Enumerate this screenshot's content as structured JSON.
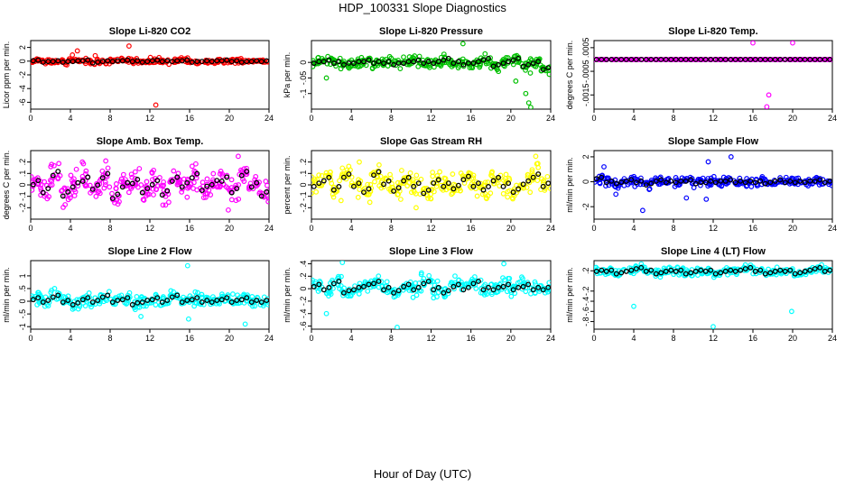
{
  "page": {
    "title": "HDP_100331  Slope Diagnostics",
    "x_caption": "Hour of Day (UTC)"
  },
  "chart_data": [
    {
      "type": "scatter",
      "title": "Slope Li-820 CO2",
      "ylabel": "Licor ppm per min.",
      "color": "#ff0000",
      "xlim": [
        0,
        24
      ],
      "xticks": [
        0,
        4,
        8,
        12,
        16,
        20,
        24
      ],
      "ylim": [
        -7,
        3
      ],
      "yticks": [
        2,
        0,
        -2,
        -4,
        -6
      ],
      "spread": 0.3,
      "hourly_means": [
        0.1,
        -0.1,
        0.0,
        -0.1,
        0.0,
        0.1,
        -0.2,
        0.0,
        0.0,
        0.1,
        0.0,
        -0.1,
        0.1,
        0.0,
        0.0,
        0.1,
        -0.1,
        0.0,
        0.0,
        0.1,
        0.0,
        -0.1,
        0.0,
        0.0
      ],
      "outliers": [
        [
          4.7,
          1.5
        ],
        [
          9.9,
          2.2
        ],
        [
          12.6,
          -6.4
        ],
        [
          4.2,
          0.9
        ],
        [
          6.5,
          0.8
        ]
      ]
    },
    {
      "type": "scatter",
      "title": "Slope Li-820 Pressure",
      "ylabel": "kPa per min.",
      "color": "#00c000",
      "xlim": [
        0,
        24
      ],
      "xticks": [
        0,
        4,
        8,
        12,
        16,
        20,
        24
      ],
      "ylim": [
        -0.15,
        0.07
      ],
      "yticks": [
        0.0,
        -0.05,
        -0.1
      ],
      "spread": 0.015,
      "hourly_means": [
        0.0,
        0.005,
        0.0,
        -0.005,
        0.0,
        0.005,
        0.0,
        0.0,
        -0.005,
        0.0,
        0.005,
        0.0,
        0.0,
        0.01,
        0.0,
        -0.005,
        0.0,
        0.01,
        -0.01,
        0.0,
        0.01,
        -0.01,
        0.0,
        -0.02
      ],
      "outliers": [
        [
          15.2,
          0.06
        ],
        [
          21.5,
          -0.1
        ],
        [
          21.8,
          -0.13
        ],
        [
          22.0,
          -0.15
        ],
        [
          20.5,
          -0.06
        ],
        [
          1.5,
          -0.05
        ]
      ]
    },
    {
      "type": "scatter",
      "title": "Slope Li-820 Temp.",
      "ylabel": "degrees C per min.",
      "color": "#ff00ff",
      "xlim": [
        0,
        24
      ],
      "xticks": [
        0,
        4,
        8,
        12,
        16,
        20,
        24
      ],
      "ylim": [
        -0.0021,
        0.0008
      ],
      "yticks": [
        0.0005,
        -0.0005,
        -0.0015
      ],
      "spread": 0.0,
      "hourly_means": [
        0,
        0,
        0,
        0,
        0,
        0,
        0,
        0,
        0,
        0,
        0,
        0,
        0,
        0,
        0,
        0,
        0,
        0,
        0,
        0,
        0,
        0,
        0,
        0
      ],
      "outliers": [
        [
          16.0,
          0.0007
        ],
        [
          20.0,
          0.0007
        ],
        [
          17.6,
          -0.0015
        ],
        [
          17.4,
          -0.002
        ]
      ]
    },
    {
      "type": "scatter",
      "title": "Slope Amb. Box Temp.",
      "ylabel": "degrees C per min.",
      "color": "#ff00ff",
      "xlim": [
        0,
        24
      ],
      "xticks": [
        0,
        4,
        8,
        12,
        16,
        20,
        24
      ],
      "ylim": [
        -0.3,
        0.3
      ],
      "yticks": [
        0.2,
        0.1,
        0.0,
        -0.1,
        -0.2
      ],
      "spread": 0.1,
      "hourly_means": [
        0.02,
        -0.05,
        0.1,
        -0.08,
        0.0,
        0.05,
        -0.02,
        0.08,
        -0.1,
        0.0,
        0.03,
        -0.05,
        0.02,
        -0.07,
        0.05,
        0.0,
        0.08,
        -0.03,
        0.02,
        0.05,
        -0.05,
        0.1,
        0.0,
        -0.08
      ],
      "outliers": [
        [
          20.9,
          0.25
        ],
        [
          19.9,
          -0.22
        ],
        [
          5.2,
          0.2
        ]
      ]
    },
    {
      "type": "scatter",
      "title": "Slope Gas Stream RH",
      "ylabel": "percent per min.",
      "color": "#ffff00",
      "xlim": [
        0,
        24
      ],
      "xticks": [
        0,
        4,
        8,
        12,
        16,
        20,
        24
      ],
      "ylim": [
        -0.3,
        0.3
      ],
      "yticks": [
        0.2,
        0.1,
        0.0,
        -0.1,
        -0.2
      ],
      "spread": 0.08,
      "hourly_means": [
        0.0,
        0.05,
        -0.03,
        0.08,
        0.0,
        -0.05,
        0.1,
        0.02,
        -0.04,
        0.05,
        0.0,
        -0.06,
        0.03,
        0.0,
        -0.02,
        0.06,
        0.0,
        -0.03,
        0.05,
        0.0,
        -0.05,
        0.02,
        0.08,
        0.0
      ],
      "outliers": [
        [
          22.5,
          0.25
        ],
        [
          4.8,
          0.2
        ],
        [
          10.5,
          -0.2
        ]
      ]
    },
    {
      "type": "scatter",
      "title": "Slope Sample Flow",
      "ylabel": "ml/min per min.",
      "color": "#0000ff",
      "xlim": [
        0,
        24
      ],
      "xticks": [
        0,
        4,
        8,
        12,
        16,
        20,
        24
      ],
      "ylim": [
        -3,
        2.5
      ],
      "yticks": [
        2,
        0,
        -2
      ],
      "spread": 0.3,
      "hourly_means": [
        0.3,
        0.0,
        -0.1,
        0.1,
        0.0,
        -0.2,
        0.1,
        0.0,
        0.0,
        0.1,
        -0.1,
        0.0,
        0.0,
        0.1,
        0.0,
        0.0,
        0.0,
        -0.1,
        0.1,
        0.0,
        0.0,
        0.0,
        0.1,
        0.0
      ],
      "outliers": [
        [
          13.8,
          2.0
        ],
        [
          11.5,
          1.6
        ],
        [
          4.9,
          -2.3
        ],
        [
          11.3,
          -1.4
        ],
        [
          9.3,
          -1.3
        ],
        [
          2.2,
          -1.0
        ],
        [
          1.0,
          1.2
        ]
      ]
    },
    {
      "type": "scatter",
      "title": "Slope Line 2 Flow",
      "ylabel": "ml/min per min.",
      "color": "#00ffff",
      "xlim": [
        0,
        24
      ],
      "xticks": [
        0,
        4,
        8,
        12,
        16,
        20,
        24
      ],
      "ylim": [
        -1.1,
        1.6
      ],
      "yticks": [
        1.0,
        0.5,
        0.0,
        -0.5,
        -1.0
      ],
      "spread": 0.2,
      "hourly_means": [
        0.1,
        0.0,
        0.2,
        0.0,
        -0.1,
        0.1,
        0.0,
        0.2,
        0.0,
        0.1,
        -0.1,
        0.0,
        0.1,
        0.0,
        0.2,
        0.0,
        0.1,
        0.0,
        0.0,
        0.1,
        0.0,
        0.1,
        0.0,
        0.0
      ],
      "outliers": [
        [
          15.8,
          1.4
        ],
        [
          15.9,
          -0.7
        ],
        [
          21.6,
          -0.9
        ],
        [
          11.1,
          -0.6
        ]
      ]
    },
    {
      "type": "scatter",
      "title": "Slope Line 3 Flow",
      "ylabel": "ml/min per min.",
      "color": "#00ffff",
      "xlim": [
        0,
        24
      ],
      "xticks": [
        0,
        4,
        8,
        12,
        16,
        20,
        24
      ],
      "ylim": [
        -0.65,
        0.45
      ],
      "yticks": [
        0.4,
        0.2,
        0.0,
        -0.2,
        -0.4,
        -0.6
      ],
      "spread": 0.1,
      "hourly_means": [
        0.05,
        0.0,
        0.1,
        -0.05,
        0.0,
        0.05,
        0.1,
        0.0,
        -0.05,
        0.05,
        0.0,
        0.1,
        0.0,
        -0.05,
        0.05,
        0.0,
        0.1,
        0.0,
        0.0,
        0.05,
        0.0,
        0.05,
        0.0,
        0.0
      ],
      "outliers": [
        [
          3.1,
          0.42
        ],
        [
          19.3,
          0.4
        ],
        [
          8.6,
          -0.62
        ],
        [
          1.5,
          -0.4
        ]
      ]
    },
    {
      "type": "scatter",
      "title": "Slope Line 4 (LT) Flow",
      "ylabel": "ml/min per min.",
      "color": "#00ffff",
      "xlim": [
        0,
        24
      ],
      "xticks": [
        0,
        4,
        8,
        12,
        16,
        20,
        24
      ],
      "ylim": [
        -0.95,
        0.4
      ],
      "yticks": [
        0.2,
        -0.2,
        -0.4,
        -0.6,
        -0.8
      ],
      "spread": 0.06,
      "hourly_means": [
        0.2,
        0.2,
        0.15,
        0.2,
        0.25,
        0.2,
        0.15,
        0.2,
        0.2,
        0.15,
        0.2,
        0.2,
        0.15,
        0.2,
        0.2,
        0.25,
        0.2,
        0.15,
        0.2,
        0.2,
        0.15,
        0.2,
        0.25,
        0.2
      ],
      "outliers": [
        [
          4.0,
          -0.5
        ],
        [
          12.0,
          -0.9
        ],
        [
          19.9,
          -0.6
        ]
      ]
    }
  ]
}
